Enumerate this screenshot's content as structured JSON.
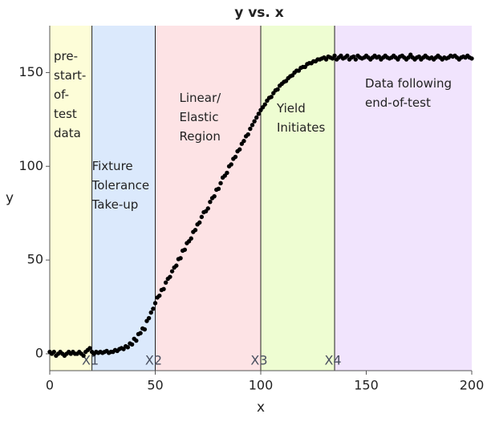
{
  "chart_data": {
    "type": "scatter",
    "title": "y vs. x",
    "xlabel": "x",
    "ylabel": "y",
    "xlim": [
      0,
      200
    ],
    "ylim": [
      -9,
      175
    ],
    "xticks": [
      0,
      50,
      100,
      150,
      200
    ],
    "yticks": [
      0,
      50,
      100,
      150
    ],
    "regions": [
      {
        "x0": 0,
        "x1": 20,
        "color": "#fdfdd8",
        "lines": [
          "pre-",
          "start-",
          "of-",
          "test",
          "data"
        ]
      },
      {
        "x0": 20,
        "x1": 50,
        "color": "#dbe9fc",
        "lines": [
          "Fixture",
          "Tolerance",
          "Take-up"
        ]
      },
      {
        "x0": 50,
        "x1": 100,
        "color": "#fde3e5",
        "lines": [
          "Linear/",
          "Elastic",
          "Region"
        ]
      },
      {
        "x0": 100,
        "x1": 135,
        "color": "#eefdd2",
        "lines": [
          "Yield",
          "Initiates"
        ]
      },
      {
        "x0": 135,
        "x1": 200,
        "color": "#f1e4fd",
        "lines": [
          "Data following",
          "end-of-test"
        ]
      }
    ],
    "boundaries": [
      {
        "x": 20,
        "label": "X1"
      },
      {
        "x": 50,
        "label": "X2"
      },
      {
        "x": 100,
        "label": "X3"
      },
      {
        "x": 135,
        "label": "X4"
      }
    ],
    "series": [
      {
        "name": "y",
        "color": "#000000",
        "x": [
          0,
          1,
          2,
          3,
          4,
          5,
          6,
          7,
          8,
          9,
          10,
          11,
          12,
          13,
          14,
          15,
          16,
          17,
          18,
          19,
          20,
          21,
          22,
          23,
          24,
          25,
          26,
          27,
          28,
          29,
          30,
          31,
          32,
          33,
          34,
          35,
          36,
          37,
          38,
          39,
          40,
          41,
          42,
          43,
          44,
          45,
          46,
          47,
          48,
          49,
          50,
          51,
          52,
          53,
          54,
          55,
          56,
          57,
          58,
          59,
          60,
          61,
          62,
          63,
          64,
          65,
          66,
          67,
          68,
          69,
          70,
          71,
          72,
          73,
          74,
          75,
          76,
          77,
          78,
          79,
          80,
          81,
          82,
          83,
          84,
          85,
          86,
          87,
          88,
          89,
          90,
          91,
          92,
          93,
          94,
          95,
          96,
          97,
          98,
          99,
          100,
          101,
          102,
          103,
          104,
          105,
          106,
          107,
          108,
          109,
          110,
          111,
          112,
          113,
          114,
          115,
          116,
          117,
          118,
          119,
          120,
          121,
          122,
          123,
          124,
          125,
          126,
          127,
          128,
          129,
          130,
          131,
          132,
          133,
          134,
          135,
          136,
          137,
          138,
          139,
          140,
          141,
          142,
          143,
          144,
          145,
          146,
          147,
          148,
          149,
          150,
          151,
          152,
          153,
          154,
          155,
          156,
          157,
          158,
          159,
          160,
          161,
          162,
          163,
          164,
          165,
          166,
          167,
          168,
          169,
          170,
          171,
          172,
          173,
          174,
          175,
          176,
          177,
          178,
          179,
          180,
          181,
          182,
          183,
          184,
          185,
          186,
          187,
          188,
          189,
          190,
          191,
          192,
          193,
          194,
          195,
          196,
          197,
          198,
          199,
          200
        ],
        "values": [
          1,
          0,
          1,
          -1,
          0,
          1,
          0,
          -1,
          0,
          1,
          0,
          1,
          0,
          0,
          1,
          0,
          -1,
          1,
          2,
          3,
          1,
          0,
          1,
          0.5,
          1,
          0.5,
          1,
          1.5,
          0.5,
          1,
          1,
          2,
          1.5,
          2.5,
          3,
          2.5,
          4,
          3.5,
          5.5,
          5,
          8,
          7,
          10.5,
          11,
          13.5,
          13,
          17.5,
          19,
          22,
          24,
          27,
          30,
          31,
          34,
          34.5,
          38,
          40,
          41,
          44,
          46,
          47,
          50.5,
          51,
          55,
          55.5,
          59,
          60,
          61.5,
          65,
          66,
          69,
          70,
          73,
          75.5,
          76,
          77.5,
          81,
          83,
          84,
          87.5,
          88,
          91,
          94,
          95,
          96.5,
          100,
          101,
          104,
          105,
          108,
          109,
          112,
          113.5,
          116,
          117,
          120,
          122,
          124,
          126,
          128,
          130,
          131.5,
          133,
          135,
          136.5,
          137,
          139,
          140.5,
          141,
          143,
          144,
          145,
          145.5,
          147,
          148,
          148.5,
          150,
          151,
          151,
          152.5,
          153,
          153,
          154.5,
          155,
          155,
          156,
          156,
          157,
          157,
          157.5,
          158,
          157,
          158.5,
          158,
          157.5,
          159,
          157,
          158,
          159,
          157.5,
          158,
          159,
          157,
          158,
          158.5,
          157,
          159,
          158,
          157.5,
          158,
          159,
          158,
          157,
          158,
          159,
          158,
          158.5,
          157,
          158,
          159,
          158,
          157.5,
          158,
          159,
          158,
          157,
          158.5,
          159,
          158,
          157,
          158,
          159.5,
          158,
          157,
          158,
          158.5,
          157,
          158,
          159,
          158,
          157.5,
          158,
          157,
          158,
          159,
          158,
          157,
          158,
          157.5,
          158,
          159,
          158.5,
          159,
          158,
          157,
          158,
          158.5,
          158,
          159,
          158,
          157.5
        ]
      }
    ]
  }
}
